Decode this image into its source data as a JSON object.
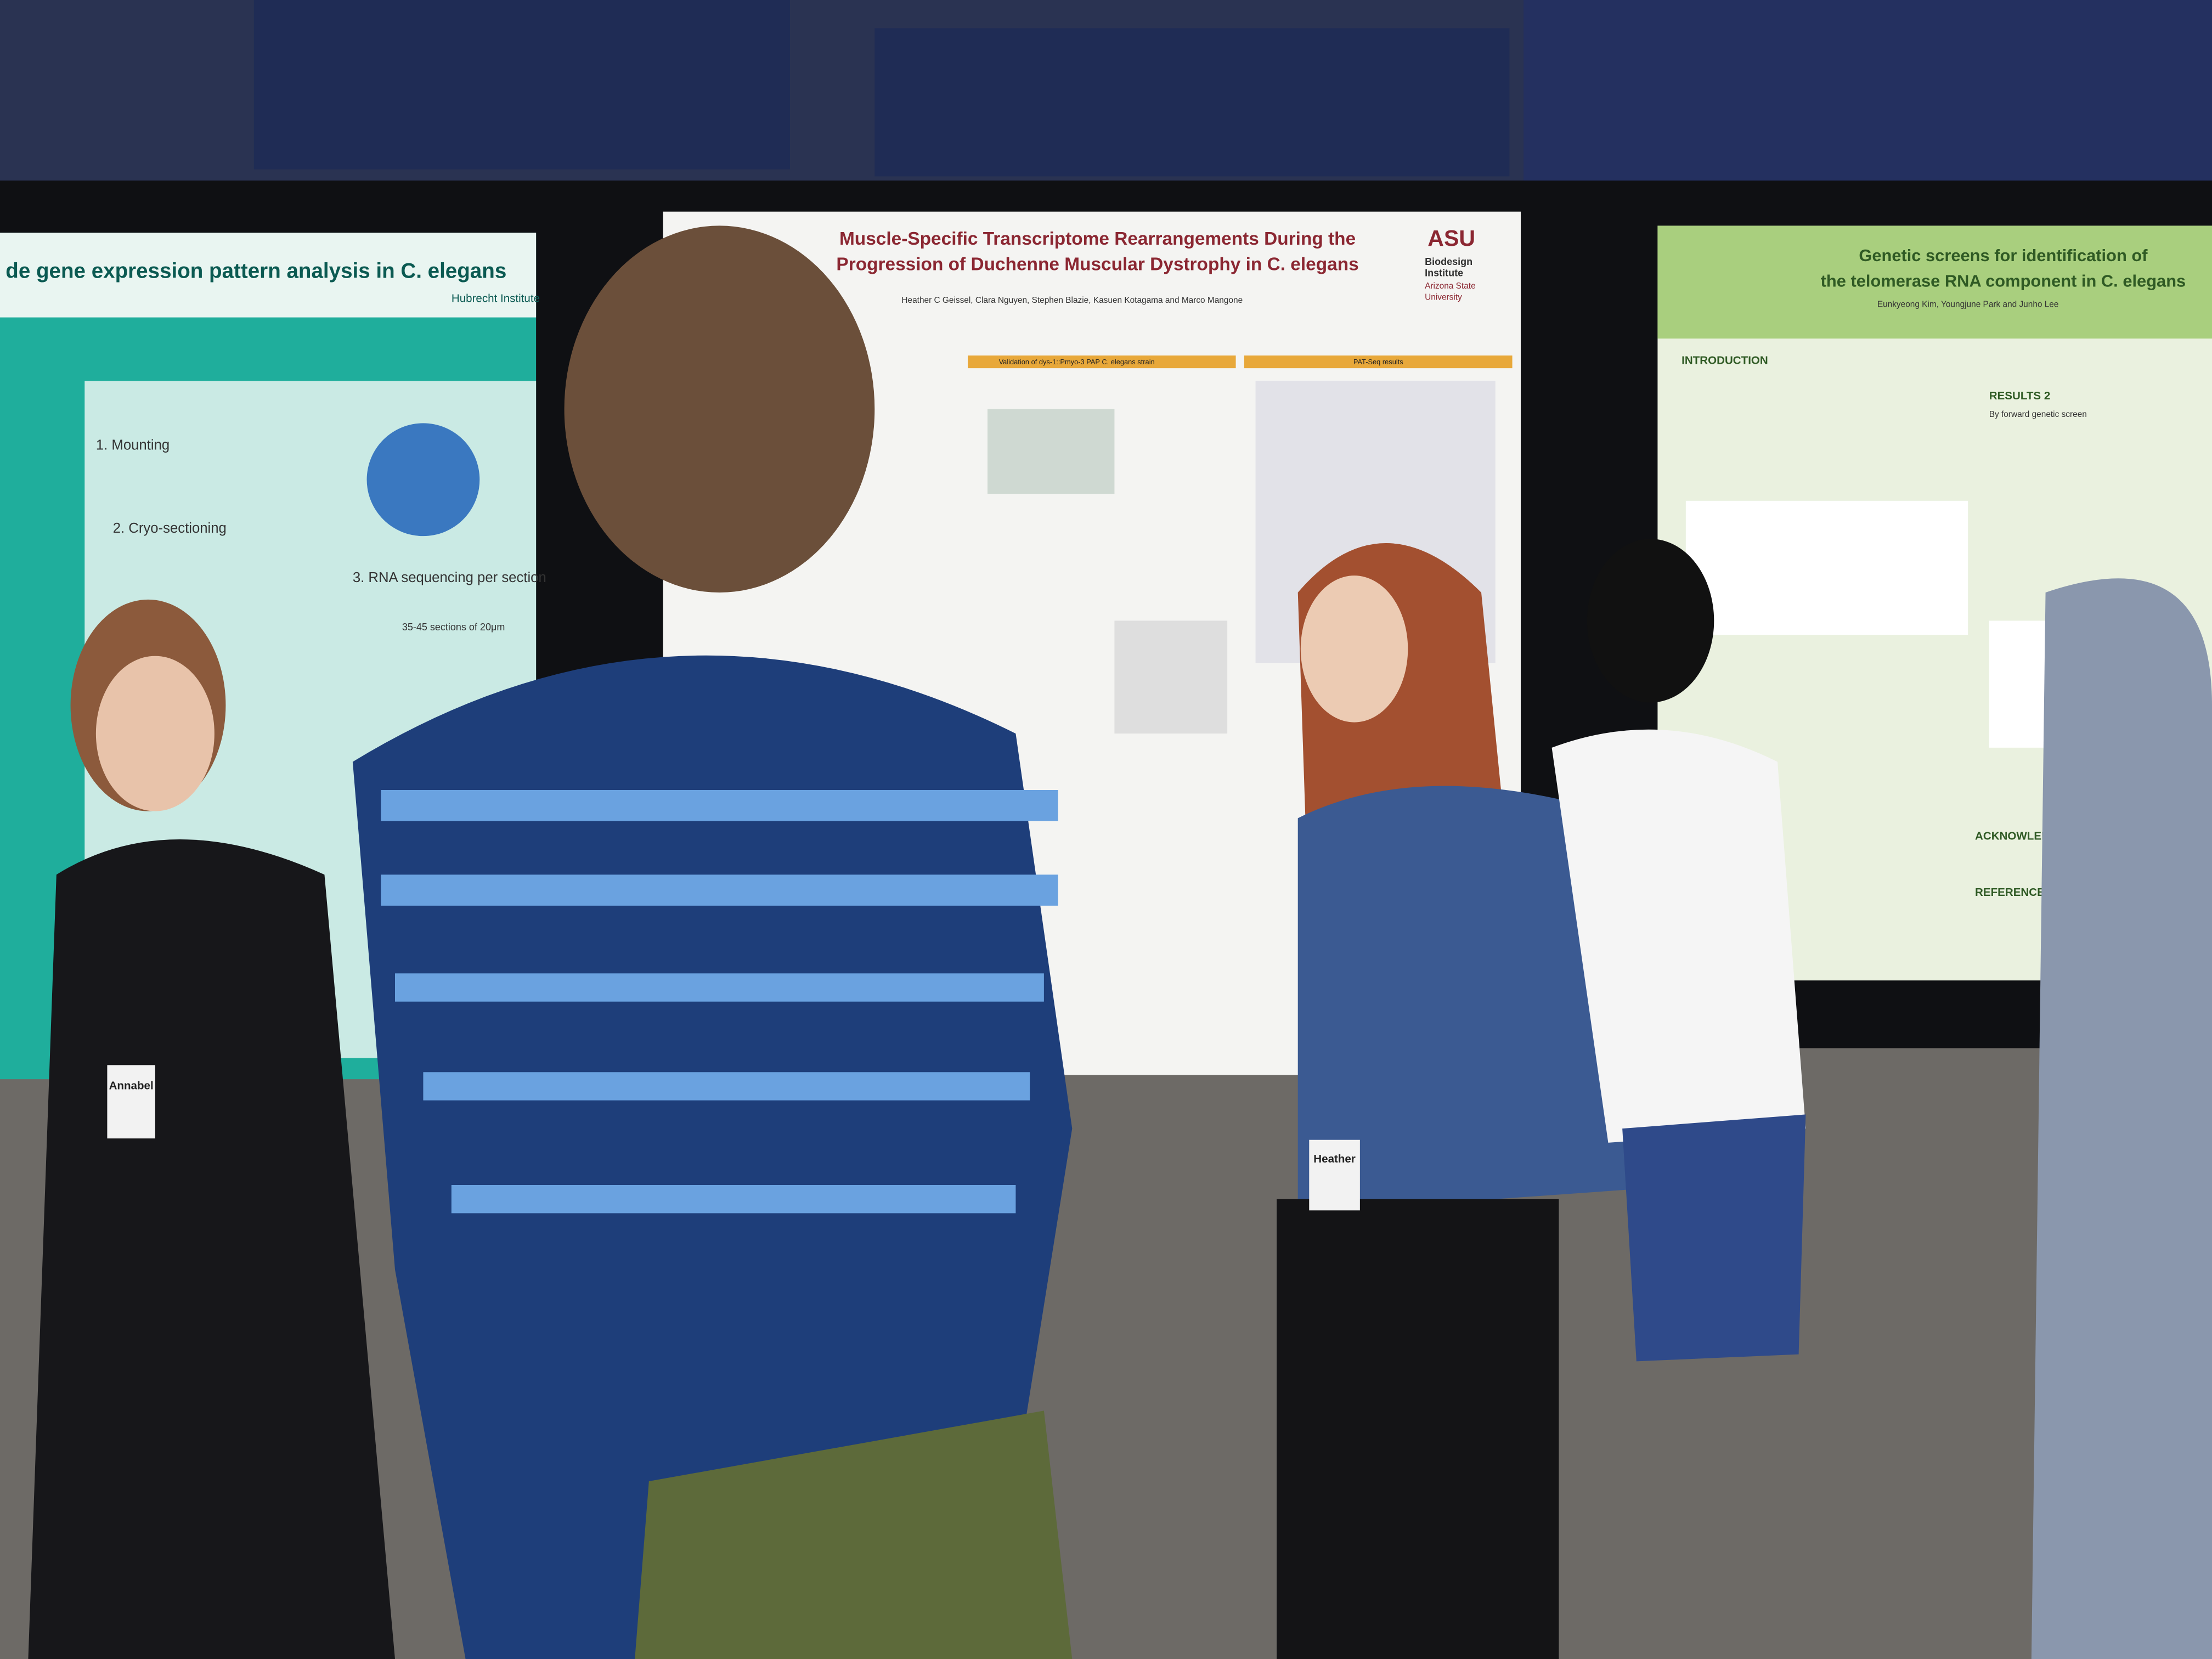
{
  "posters": [
    {
      "title_lines": [
        "de gene expression pattern analysis in C. elegans"
      ],
      "institute": "Hubrecht Institute",
      "steps": [
        "1. Mounting",
        "2. Cryo-sectioning",
        "3. RNA sequencing per section"
      ],
      "note": "35-45 sections of 20μm"
    },
    {
      "title_lines": [
        "Muscle-Specific Transcriptome Rearrangements During the",
        "Progression of Duchenne Muscular Dystrophy in C. elegans"
      ],
      "logo": "ASU",
      "institute_lines": [
        "Biodesign",
        "Institute",
        "Arizona State",
        "University"
      ],
      "authors": "Heather C Geissel, Clara Nguyen, Stephen Blazie, Kasuen Kotagama and Marco Mangone",
      "sections": [
        "Validation of dys-1::Pmyo-3 PAP C. elegans strain",
        "PAT-Seq results"
      ]
    },
    {
      "title_lines": [
        "Genetic screens for identification of",
        "the telomerase RNA component in C. elegans"
      ],
      "authors": "Eunkyeong Kim, Youngjune Park and Junho Lee",
      "sections": [
        "INTRODUCTION",
        "RESULTS 2",
        "By forward genetic screen",
        "ACKNOWLEDGEMENT",
        "REFERENCES"
      ]
    }
  ],
  "badges": [
    "Annabel",
    "Heather"
  ]
}
